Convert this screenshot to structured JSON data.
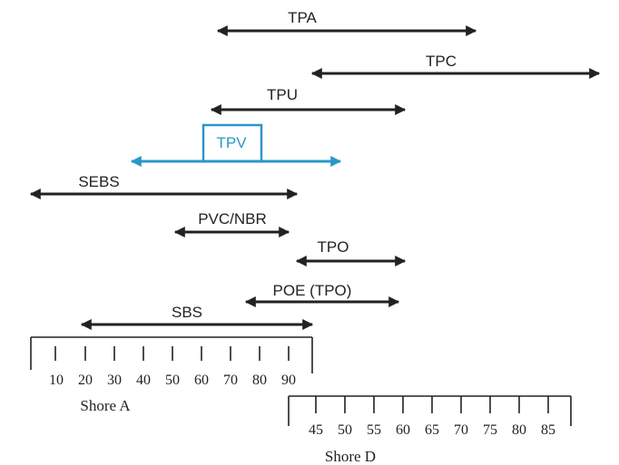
{
  "colors": {
    "default": "#222222",
    "highlight": "#2b97c9"
  },
  "materials": [
    {
      "id": "tpa",
      "label": "TPA"
    },
    {
      "id": "tpc",
      "label": "TPC"
    },
    {
      "id": "tpu",
      "label": "TPU"
    },
    {
      "id": "tpv",
      "label": "TPV",
      "highlight": true
    },
    {
      "id": "sebs",
      "label": "SEBS"
    },
    {
      "id": "pvc-nbr",
      "label": "PVC/NBR"
    },
    {
      "id": "tpo",
      "label": "TPO"
    },
    {
      "id": "poe",
      "label": "POE (TPO)"
    },
    {
      "id": "sbs",
      "label": "SBS"
    }
  ],
  "scales": {
    "shore_a": {
      "title": "Shore A",
      "ticks": [
        "10",
        "20",
        "30",
        "40",
        "50",
        "60",
        "70",
        "80",
        "90"
      ]
    },
    "shore_d": {
      "title": "Shore D",
      "ticks": [
        "45",
        "50",
        "55",
        "60",
        "65",
        "70",
        "75",
        "80",
        "85"
      ]
    }
  }
}
